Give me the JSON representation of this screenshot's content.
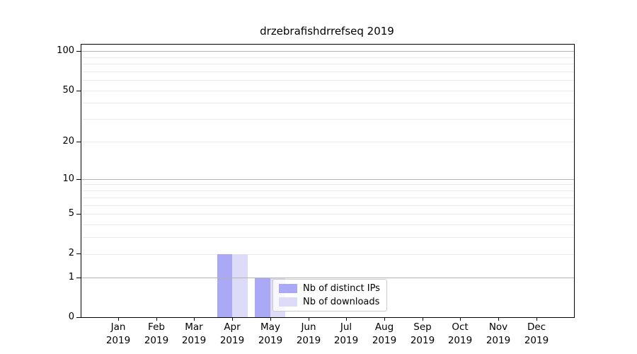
{
  "title": "drzebrafishdrrefseq 2019",
  "chart_data": {
    "type": "bar",
    "title": "drzebrafishdrrefseq 2019",
    "categories": [
      "Jan 2019",
      "Feb 2019",
      "Mar 2019",
      "Apr 2019",
      "May 2019",
      "Jun 2019",
      "Jul 2019",
      "Aug 2019",
      "Sep 2019",
      "Oct 2019",
      "Nov 2019",
      "Dec 2019"
    ],
    "series": [
      {
        "name": "Nb of distinct IPs",
        "color": "#a9a9f5",
        "values": [
          0,
          0,
          0,
          2,
          1,
          0,
          0,
          0,
          0,
          0,
          0,
          0
        ]
      },
      {
        "name": "Nb of downloads",
        "color": "#dcdcf9",
        "values": [
          0,
          0,
          0,
          2,
          1,
          0,
          0,
          0,
          0,
          0,
          0,
          0
        ]
      }
    ],
    "xlabel": "",
    "ylabel": "",
    "y_scale": "log10(1+x)",
    "ylim": [
      0,
      111
    ],
    "y_ticks": [
      0,
      1,
      2,
      5,
      10,
      20,
      50,
      100
    ],
    "y_tick_labels": [
      "0",
      "1",
      "2",
      "5",
      "10",
      "20",
      "50",
      "100"
    ],
    "y_major_gridlines": [
      1,
      10,
      100
    ],
    "y_minor_gridlines": [
      2,
      3,
      4,
      5,
      6,
      7,
      8,
      9,
      20,
      30,
      40,
      50,
      60,
      70,
      80,
      90
    ],
    "grid": "horizontal",
    "legend_position": "lower-center inside plot"
  },
  "style": {
    "background": "#ffffff",
    "axis_color": "#000000",
    "grid_major_color": "#b3b3b3",
    "grid_minor_color": "#ebebeb",
    "legend_border": "#cccccc",
    "text_color": "#000000"
  }
}
